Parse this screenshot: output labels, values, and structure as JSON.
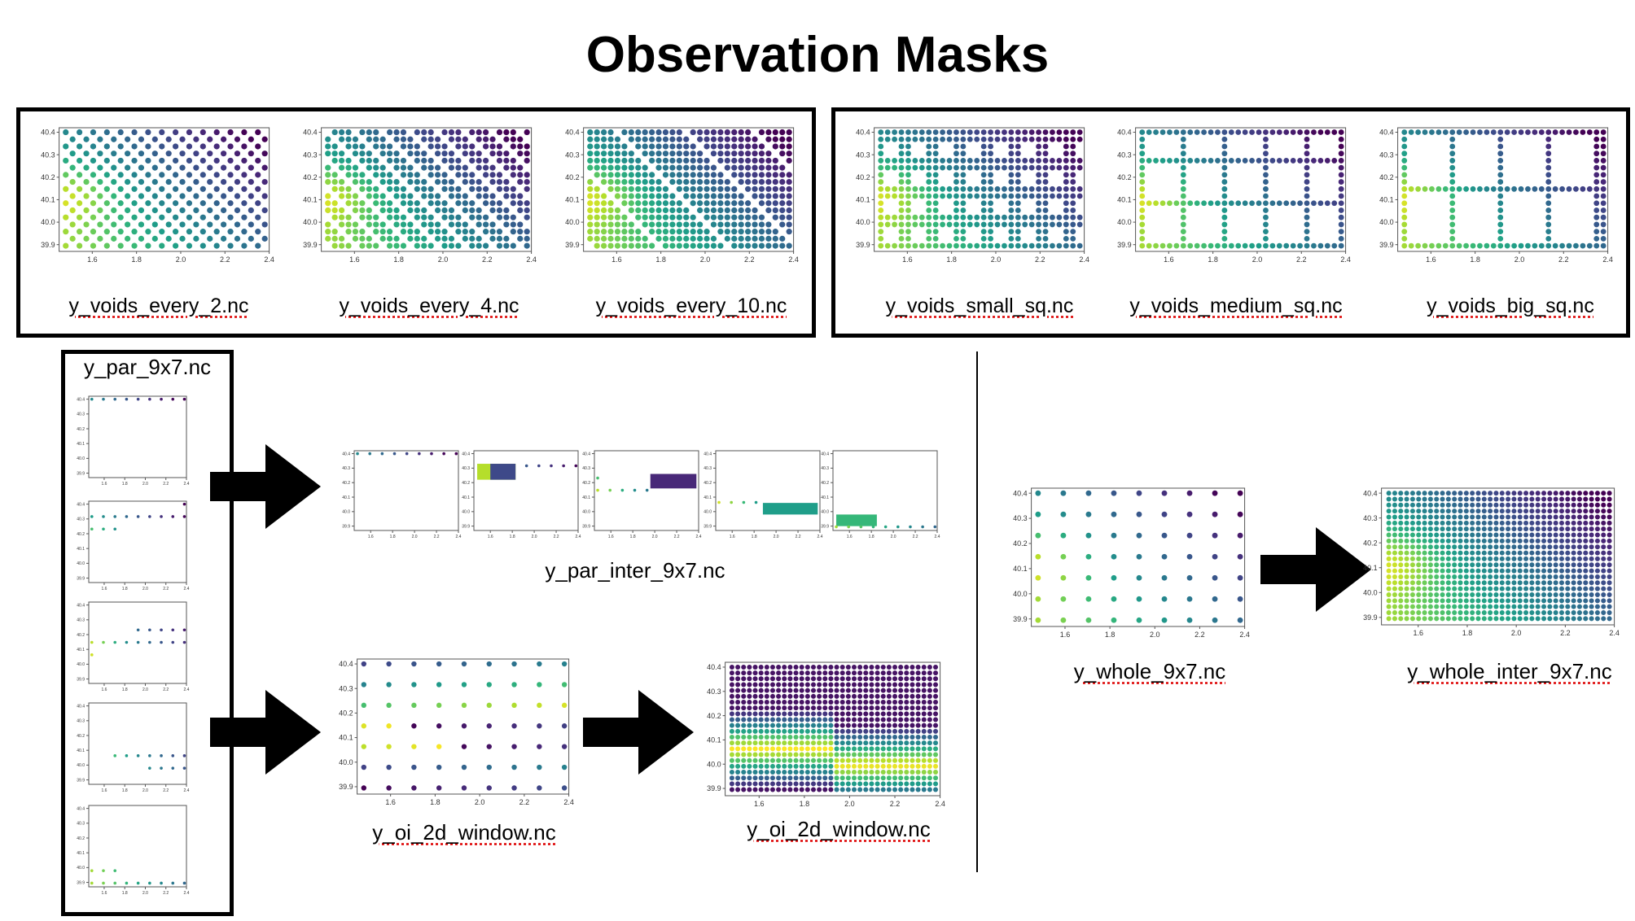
{
  "title": "Observation Masks",
  "labels": {
    "every2": "y_voids_every_2.nc",
    "every4": "y_voids_every_4.nc",
    "every10": "y_voids_every_10.nc",
    "small_sq": "y_voids_small_sq.nc",
    "medium_sq": "y_voids_medium_sq.nc",
    "big_sq": "y_voids_big_sq.nc",
    "par": "y_par_9x7.nc",
    "par_inter": "y_par_inter_9x7.nc",
    "oi_window": "y_oi_2d_window.nc",
    "oi_window_out": "y_oi_2d_window.nc",
    "whole": "y_whole_9x7.nc",
    "whole_inter": "y_whole_inter_9x7.nc"
  },
  "axes": {
    "x_ticks": [
      "1.6",
      "1.8",
      "2.0",
      "2.2",
      "2.4"
    ],
    "y_ticks": [
      "40.4",
      "40.3",
      "40.2",
      "40.1",
      "40.0",
      "39.9"
    ],
    "x_range": [
      1.45,
      2.4
    ],
    "y_range": [
      39.87,
      40.42
    ]
  },
  "colors": {
    "viridis": [
      "#440154",
      "#482878",
      "#3e4989",
      "#31688e",
      "#26828e",
      "#1f9e89",
      "#35b779",
      "#6ece58",
      "#b5de2b",
      "#fde725"
    ]
  }
}
